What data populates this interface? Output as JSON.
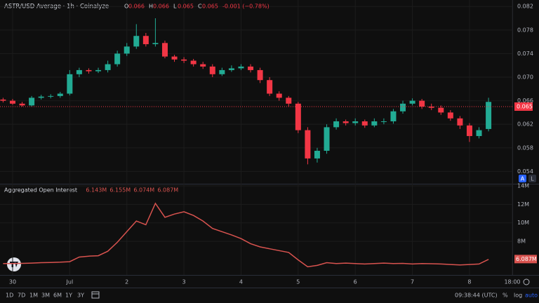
{
  "chart_data": [
    {
      "type": "candlestick",
      "title": "ASTR/USD Average · 1h · Coinalyze",
      "ohlc_legend": [
        {
          "label": "O",
          "value": "0.066"
        },
        {
          "label": "H",
          "value": "0.066"
        },
        {
          "label": "L",
          "value": "0.065"
        },
        {
          "label": "C",
          "value": "0.065"
        },
        {
          "label": "",
          "value": "-0.001 (−0.78%)"
        }
      ],
      "x": [
        -4,
        0,
        4,
        8,
        12,
        16,
        20,
        24,
        28,
        32,
        36,
        40,
        44,
        48,
        52,
        56,
        60,
        64,
        68,
        72,
        76,
        80,
        84,
        88,
        92,
        96,
        100,
        104,
        108,
        112,
        116,
        120,
        124,
        128,
        132,
        136,
        140,
        144,
        148,
        152,
        156,
        160,
        164,
        168,
        172,
        176,
        180,
        184,
        188,
        192,
        196,
        200
      ],
      "open": [
        0.0662,
        0.066,
        0.0655,
        0.0652,
        0.0665,
        0.0667,
        0.0668,
        0.0672,
        0.0705,
        0.0712,
        0.071,
        0.0712,
        0.0722,
        0.074,
        0.0752,
        0.077,
        0.0756,
        0.0758,
        0.0735,
        0.073,
        0.0728,
        0.0722,
        0.0718,
        0.0705,
        0.0712,
        0.0715,
        0.0718,
        0.0712,
        0.0695,
        0.0672,
        0.0665,
        0.0655,
        0.061,
        0.0562,
        0.0575,
        0.0615,
        0.0625,
        0.0622,
        0.0625,
        0.0618,
        0.0625,
        0.0625,
        0.0642,
        0.0655,
        0.066,
        0.065,
        0.0648,
        0.064,
        0.063,
        0.0618,
        0.06,
        0.0612
      ],
      "high": [
        0.0665,
        0.0663,
        0.0658,
        0.0668,
        0.067,
        0.0671,
        0.0675,
        0.0712,
        0.0716,
        0.0715,
        0.0716,
        0.0728,
        0.0745,
        0.0758,
        0.079,
        0.0775,
        0.08,
        0.0762,
        0.0738,
        0.0734,
        0.0731,
        0.0726,
        0.0722,
        0.0716,
        0.072,
        0.0722,
        0.0722,
        0.0716,
        0.07,
        0.0676,
        0.0668,
        0.0658,
        0.0615,
        0.058,
        0.062,
        0.063,
        0.0628,
        0.063,
        0.0628,
        0.063,
        0.063,
        0.0646,
        0.066,
        0.0664,
        0.0663,
        0.0655,
        0.0652,
        0.0644,
        0.0634,
        0.0622,
        0.0615,
        0.0665
      ],
      "low": [
        0.0657,
        0.0653,
        0.065,
        0.065,
        0.0662,
        0.0664,
        0.0665,
        0.0669,
        0.07,
        0.0706,
        0.0707,
        0.0708,
        0.0718,
        0.0736,
        0.0748,
        0.0752,
        0.0752,
        0.0732,
        0.0726,
        0.0724,
        0.0718,
        0.0714,
        0.07,
        0.0702,
        0.0709,
        0.0712,
        0.0708,
        0.069,
        0.0668,
        0.066,
        0.065,
        0.0605,
        0.0552,
        0.0555,
        0.057,
        0.0611,
        0.0618,
        0.0618,
        0.0614,
        0.0615,
        0.062,
        0.0621,
        0.0638,
        0.0652,
        0.0646,
        0.0644,
        0.0636,
        0.0626,
        0.0612,
        0.059,
        0.0596,
        0.0608
      ],
      "close": [
        0.066,
        0.0655,
        0.0652,
        0.0665,
        0.0667,
        0.0668,
        0.0672,
        0.0705,
        0.0712,
        0.071,
        0.0712,
        0.0722,
        0.074,
        0.0752,
        0.077,
        0.0756,
        0.0758,
        0.0735,
        0.073,
        0.0728,
        0.0722,
        0.0718,
        0.0705,
        0.0712,
        0.0715,
        0.0718,
        0.0712,
        0.0695,
        0.0672,
        0.0665,
        0.0655,
        0.061,
        0.0562,
        0.0575,
        0.0615,
        0.0625,
        0.0622,
        0.0625,
        0.0618,
        0.0625,
        0.0625,
        0.0642,
        0.0655,
        0.066,
        0.065,
        0.0648,
        0.064,
        0.063,
        0.0618,
        0.06,
        0.061,
        0.0658
      ],
      "up_color": "#22ab94",
      "down_color": "#f23645",
      "last_price": 0.065,
      "xlim": [
        -5.3,
        210
      ],
      "xticks": [
        {
          "value": 0,
          "label": "30"
        },
        {
          "value": 24,
          "label": "Jul"
        },
        {
          "value": 48,
          "label": "2"
        },
        {
          "value": 72,
          "label": "3"
        },
        {
          "value": 96,
          "label": "4"
        },
        {
          "value": 120,
          "label": "5"
        },
        {
          "value": 144,
          "label": "6"
        },
        {
          "value": 168,
          "label": "7"
        },
        {
          "value": 192,
          "label": "8"
        },
        {
          "value": 210,
          "label": "18:00"
        }
      ],
      "ylim": [
        0.0519,
        0.0831
      ],
      "yticks": [
        0.082,
        0.078,
        0.074,
        {
          "value": 0.07,
          "label": "0.070"
        },
        0.066,
        0.062,
        0.058,
        0.054
      ],
      "grid": true
    },
    {
      "type": "line",
      "title": "Aggregated Open Interest",
      "ohlc_legend": [
        "6.143M",
        "6.155M",
        "6.074M",
        "6.087M"
      ],
      "x": [
        -4,
        0,
        4,
        8,
        12,
        16,
        20,
        24,
        28,
        32,
        36,
        40,
        44,
        48,
        52,
        56,
        60,
        64,
        68,
        72,
        76,
        80,
        84,
        88,
        92,
        96,
        100,
        104,
        108,
        112,
        116,
        120,
        124,
        128,
        132,
        136,
        140,
        144,
        148,
        152,
        156,
        160,
        164,
        168,
        172,
        176,
        180,
        184,
        188,
        192,
        196,
        200
      ],
      "values": [
        5.6,
        5.6,
        5.62,
        5.65,
        5.7,
        5.72,
        5.75,
        5.8,
        6.3,
        6.4,
        6.45,
        6.93,
        7.9,
        9.05,
        10.2,
        9.8,
        12.1,
        10.6,
        10.95,
        11.2,
        10.8,
        10.2,
        9.4,
        9.05,
        8.7,
        8.3,
        7.75,
        7.4,
        7.2,
        7.0,
        6.8,
        6.0,
        5.25,
        5.4,
        5.7,
        5.6,
        5.65,
        5.6,
        5.55,
        5.6,
        5.65,
        5.6,
        5.62,
        5.55,
        5.6,
        5.58,
        5.55,
        5.5,
        5.45,
        5.5,
        5.55,
        6.05
      ],
      "color": "#d9534f",
      "last_value": {
        "value": 6.087,
        "label": "6.087M"
      },
      "xlim": [
        -5.3,
        210
      ],
      "ylim": [
        4.37,
        14.15
      ],
      "yticks": [
        {
          "value": 14,
          "label": "14M"
        },
        {
          "value": 12,
          "label": "12M"
        },
        {
          "value": 10,
          "label": "10M"
        },
        {
          "value": 8,
          "label": "8M"
        }
      ],
      "grid": true
    }
  ],
  "price_scale_buttons": [
    "A",
    "L"
  ],
  "toolbar": {
    "ranges": [
      "1D",
      "7D",
      "1M",
      "3M",
      "6M",
      "1Y",
      "3Y"
    ],
    "time": "09:38:44 (UTC)",
    "options": [
      "%",
      "log",
      "auto"
    ]
  }
}
